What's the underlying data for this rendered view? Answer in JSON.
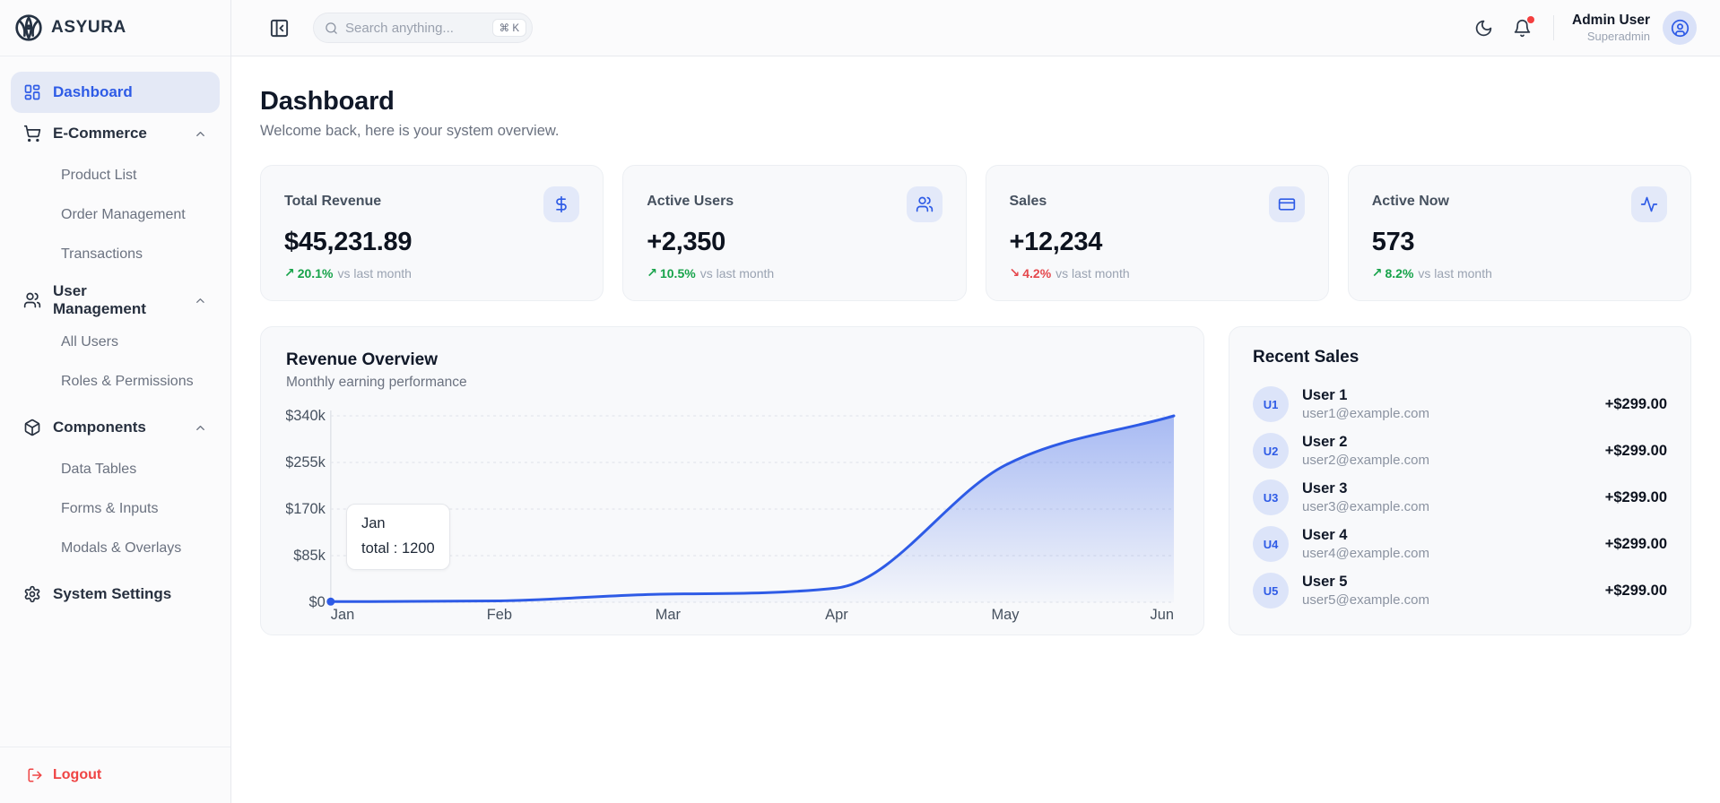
{
  "brand": {
    "name": "ASYURA"
  },
  "topbar": {
    "search_placeholder": "Search anything...",
    "shortcut": "⌘ K",
    "user": {
      "name": "Admin User",
      "role": "Superadmin"
    }
  },
  "sidebar": {
    "items": [
      {
        "label": "Dashboard",
        "active": true
      },
      {
        "label": "E-Commerce",
        "children": [
          "Product List",
          "Order Management",
          "Transactions"
        ]
      },
      {
        "label": "User Management",
        "children": [
          "All Users",
          "Roles & Permissions"
        ]
      },
      {
        "label": "Components",
        "children": [
          "Data Tables",
          "Forms & Inputs",
          "Modals & Overlays"
        ]
      },
      {
        "label": "System Settings"
      }
    ],
    "logout_label": "Logout"
  },
  "page": {
    "title": "Dashboard",
    "subtitle": "Welcome back, here is your system overview."
  },
  "stats": [
    {
      "label": "Total Revenue",
      "value": "$45,231.89",
      "trend": "20.1%",
      "trend_dir": "up",
      "suffix": "vs last month",
      "icon": "dollar-icon"
    },
    {
      "label": "Active Users",
      "value": "+2,350",
      "trend": "10.5%",
      "trend_dir": "up",
      "suffix": "vs last month",
      "icon": "users-icon"
    },
    {
      "label": "Sales",
      "value": "+12,234",
      "trend": "4.2%",
      "trend_dir": "down",
      "suffix": "vs last month",
      "icon": "credit-card-icon"
    },
    {
      "label": "Active Now",
      "value": "573",
      "trend": "8.2%",
      "trend_dir": "up",
      "suffix": "vs last month",
      "icon": "activity-icon"
    }
  ],
  "chart_data": {
    "type": "area",
    "title": "Revenue Overview",
    "subtitle": "Monthly earning performance",
    "x": [
      "Jan",
      "Feb",
      "Mar",
      "Apr",
      "May",
      "Jun"
    ],
    "values": [
      1200,
      2500,
      15000,
      26000,
      250000,
      340000
    ],
    "y_ticks": [
      "$340k",
      "$255k",
      "$170k",
      "$85k",
      "$0"
    ],
    "ylim": [
      0,
      340000
    ],
    "grid": "horizontal-dashed",
    "legend": "none",
    "line_color": "#2e5be6",
    "tooltip": {
      "label": "Jan",
      "text": "total : 1200"
    }
  },
  "recent_sales": {
    "title": "Recent Sales",
    "items": [
      {
        "avatar": "U1",
        "name": "User 1",
        "email": "user1@example.com",
        "amount": "+$299.00"
      },
      {
        "avatar": "U2",
        "name": "User 2",
        "email": "user2@example.com",
        "amount": "+$299.00"
      },
      {
        "avatar": "U3",
        "name": "User 3",
        "email": "user3@example.com",
        "amount": "+$299.00"
      },
      {
        "avatar": "U4",
        "name": "User 4",
        "email": "user4@example.com",
        "amount": "+$299.00"
      },
      {
        "avatar": "U5",
        "name": "User 5",
        "email": "user5@example.com",
        "amount": "+$299.00"
      }
    ]
  },
  "colors": {
    "accent": "#2e5be6",
    "positive": "#17a34a",
    "negative": "#e5484d"
  }
}
